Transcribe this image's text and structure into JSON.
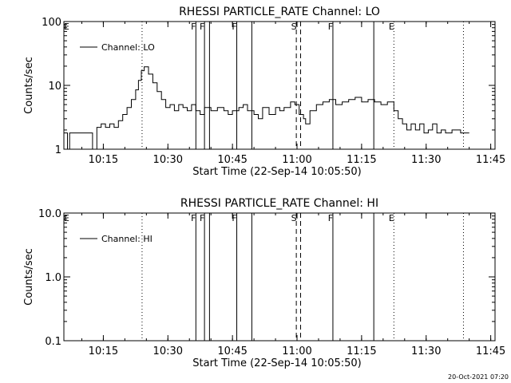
{
  "footer": {
    "timestamp": "20-Oct-2021 07:20"
  },
  "chart_data": [
    {
      "type": "line",
      "title": "RHESSI PARTICLE_RATE Channel: LO",
      "xlabel": "Start Time (22-Sep-14 10:05:50)",
      "ylabel": "Counts/sec",
      "yscale": "log",
      "ylim": [
        1,
        100
      ],
      "xlim": [
        "10:05:50",
        "11:46:00"
      ],
      "x_ticks": [
        "10:15",
        "10:30",
        "10:45",
        "11:00",
        "11:15",
        "11:30",
        "11:45"
      ],
      "y_ticks": [
        "1",
        "10",
        "100"
      ],
      "legend": {
        "placement": "top-left",
        "entries": [
          "Channel: LO"
        ]
      },
      "grid": false,
      "markers": [
        {
          "time": "10:07:00",
          "label": "E",
          "style": "none"
        },
        {
          "time": "10:24:00",
          "label": "",
          "style": "dotted"
        },
        {
          "time": "10:36:30",
          "label": "F",
          "style": "solid"
        },
        {
          "time": "10:38:30",
          "label": "F",
          "style": "solid"
        },
        {
          "time": "10:39:40",
          "label": "",
          "style": "solid"
        },
        {
          "time": "10:46:00",
          "label": "F",
          "style": "solid"
        },
        {
          "time": "10:49:30",
          "label": "",
          "style": "solid"
        },
        {
          "time": "10:59:50",
          "label": "S",
          "style": "dashed"
        },
        {
          "time": "11:00:50",
          "label": "",
          "style": "dashed"
        },
        {
          "time": "11:08:20",
          "label": "F",
          "style": "solid"
        },
        {
          "time": "11:17:50",
          "label": "",
          "style": "solid"
        },
        {
          "time": "11:22:30",
          "label": "E",
          "style": "dotted"
        },
        {
          "time": "11:38:40",
          "label": "",
          "style": "dotted"
        }
      ],
      "series": [
        {
          "name": "Channel: LO",
          "x": [
            "10:05:50",
            "10:06:40",
            "10:07:10",
            "10:07:40",
            "10:10:00",
            "10:12:00",
            "10:12:30",
            "10:13:30",
            "10:14:30",
            "10:15:30",
            "10:16:30",
            "10:17:30",
            "10:18:30",
            "10:19:30",
            "10:20:30",
            "10:21:30",
            "10:22:30",
            "10:23:10",
            "10:23:50",
            "10:24:30",
            "10:25:30",
            "10:26:30",
            "10:27:30",
            "10:28:30",
            "10:29:30",
            "10:30:30",
            "10:31:30",
            "10:32:30",
            "10:33:30",
            "10:34:30",
            "10:35:30",
            "10:36:30",
            "10:37:30",
            "10:38:30",
            "10:40:00",
            "10:41:30",
            "10:43:00",
            "10:44:00",
            "10:45:00",
            "10:46:30",
            "10:47:30",
            "10:48:30",
            "10:50:00",
            "10:51:00",
            "10:52:00",
            "10:53:30",
            "10:55:00",
            "10:56:00",
            "10:57:00",
            "10:58:30",
            "10:59:30",
            "11:00:30",
            "11:01:30",
            "11:02:00",
            "11:03:00",
            "11:04:30",
            "11:06:00",
            "11:07:30",
            "11:09:00",
            "11:10:30",
            "11:12:00",
            "11:13:30",
            "11:15:00",
            "11:16:30",
            "11:18:00",
            "11:19:30",
            "11:21:00",
            "11:22:30",
            "11:23:30",
            "11:24:30",
            "11:25:30",
            "11:26:30",
            "11:27:30",
            "11:28:30",
            "11:29:30",
            "11:30:30",
            "11:31:30",
            "11:32:30",
            "11:33:30",
            "11:34:30",
            "11:36:00",
            "11:38:00",
            "11:40:00"
          ],
          "values": [
            1.8,
            1.0,
            1.8,
            1.8,
            1.8,
            1.8,
            1.0,
            2.2,
            2.5,
            2.2,
            2.5,
            2.2,
            2.8,
            3.5,
            4.5,
            6.0,
            8.5,
            12.0,
            17.0,
            19.5,
            15.0,
            11.0,
            8.0,
            6.0,
            4.5,
            5.0,
            4.0,
            5.0,
            4.5,
            4.0,
            5.0,
            4.0,
            3.5,
            4.5,
            4.0,
            4.5,
            4.0,
            3.5,
            4.0,
            4.5,
            5.0,
            4.0,
            3.5,
            3.0,
            4.5,
            3.5,
            4.5,
            4.0,
            4.5,
            5.5,
            5.0,
            3.5,
            3.0,
            2.5,
            4.0,
            5.0,
            5.5,
            6.0,
            5.0,
            5.5,
            6.0,
            6.5,
            5.5,
            6.0,
            5.5,
            5.0,
            5.5,
            4.0,
            3.0,
            2.5,
            2.0,
            2.5,
            2.0,
            2.5,
            1.8,
            2.0,
            2.5,
            1.8,
            2.0,
            1.8,
            2.0,
            1.8,
            1.8
          ]
        }
      ]
    },
    {
      "type": "line",
      "title": "RHESSI PARTICLE_RATE Channel: HI",
      "xlabel": "Start Time (22-Sep-14 10:05:50)",
      "ylabel": "Counts/sec",
      "yscale": "log",
      "ylim": [
        0.1,
        10
      ],
      "xlim": [
        "10:05:50",
        "11:46:00"
      ],
      "x_ticks": [
        "10:15",
        "10:30",
        "10:45",
        "11:00",
        "11:15",
        "11:30",
        "11:45"
      ],
      "y_ticks": [
        "0.1",
        "1.0",
        "10.0"
      ],
      "legend": {
        "placement": "top-left",
        "entries": [
          "Channel: HI"
        ]
      },
      "grid": false,
      "markers": [
        {
          "time": "10:07:00",
          "label": "E",
          "style": "none"
        },
        {
          "time": "10:24:00",
          "label": "",
          "style": "dotted"
        },
        {
          "time": "10:36:30",
          "label": "F",
          "style": "solid"
        },
        {
          "time": "10:38:30",
          "label": "F",
          "style": "solid"
        },
        {
          "time": "10:39:40",
          "label": "",
          "style": "solid"
        },
        {
          "time": "10:46:00",
          "label": "F",
          "style": "solid"
        },
        {
          "time": "10:49:30",
          "label": "",
          "style": "solid"
        },
        {
          "time": "10:59:50",
          "label": "S",
          "style": "dashed"
        },
        {
          "time": "11:00:50",
          "label": "",
          "style": "dashed"
        },
        {
          "time": "11:08:20",
          "label": "F",
          "style": "solid"
        },
        {
          "time": "11:17:50",
          "label": "",
          "style": "solid"
        },
        {
          "time": "11:22:30",
          "label": "E",
          "style": "dotted"
        },
        {
          "time": "11:38:40",
          "label": "",
          "style": "dotted"
        }
      ],
      "series": [
        {
          "name": "Channel: HI",
          "x": [],
          "values": []
        }
      ]
    }
  ]
}
